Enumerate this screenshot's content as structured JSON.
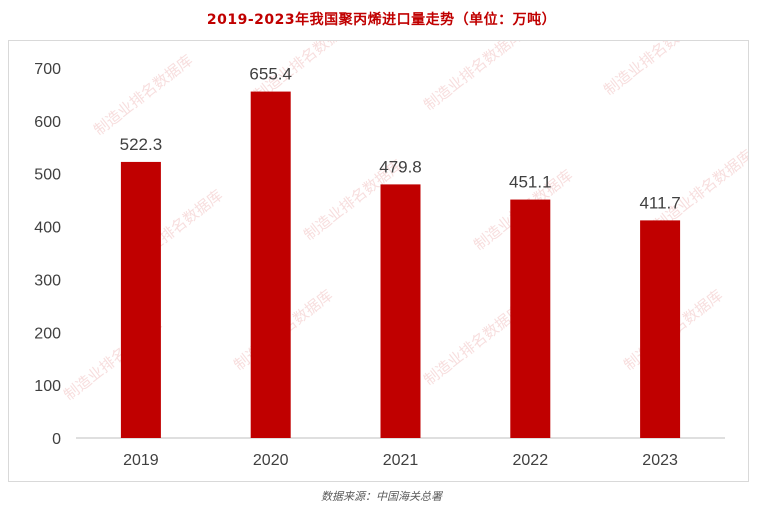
{
  "chart_data": {
    "type": "bar",
    "title": "2019-2023年我国聚丙烯进口量走势（单位：万吨）",
    "categories": [
      "2019",
      "2020",
      "2021",
      "2022",
      "2023"
    ],
    "values": [
      522.3,
      655.4,
      479.8,
      451.1,
      411.7
    ],
    "data_labels": [
      "522.3",
      "655.4",
      "479.8",
      "451.1",
      "411.7"
    ],
    "ylim": [
      0,
      700
    ],
    "yticks": [
      0,
      100,
      200,
      300,
      400,
      500,
      600,
      700
    ],
    "xlabel": "",
    "ylabel": "",
    "grid": false,
    "bar_color": "#c00000"
  },
  "source_text": "数据来源：中国海关总署",
  "watermark": "制造业排名数据库"
}
